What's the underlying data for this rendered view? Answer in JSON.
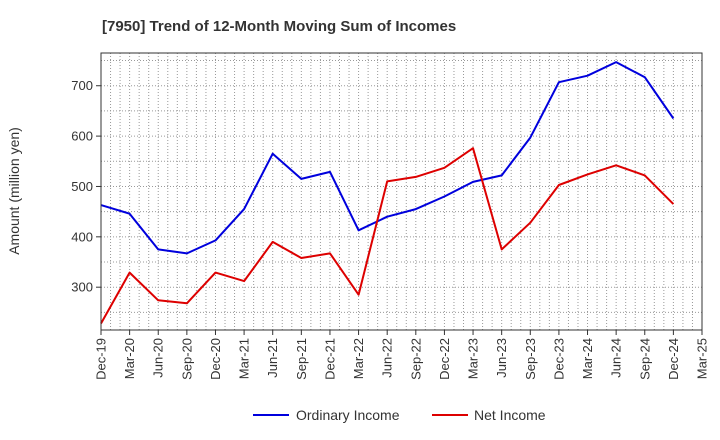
{
  "chart_data": {
    "type": "line",
    "title": "[7950]  Trend of 12-Month Moving Sum of Incomes",
    "xlabel": "",
    "ylabel": "Amount (million yen)",
    "ylim": [
      215,
      765
    ],
    "yticks": [
      300,
      400,
      500,
      600,
      700
    ],
    "grid": true,
    "legend": "bottom",
    "categories": [
      "Dec-19",
      "Mar-20",
      "Jun-20",
      "Sep-20",
      "Dec-20",
      "Mar-21",
      "Jun-21",
      "Sep-21",
      "Dec-21",
      "Mar-22",
      "Jun-22",
      "Sep-22",
      "Dec-22",
      "Mar-23",
      "Jun-23",
      "Sep-23",
      "Dec-23",
      "Mar-24",
      "Jun-24",
      "Sep-24",
      "Dec-24",
      "Mar-25"
    ],
    "series": [
      {
        "name": "Ordinary Income",
        "color": "#0000dd",
        "values": [
          463,
          446,
          375,
          367,
          393,
          455,
          565,
          515,
          529,
          413,
          440,
          455,
          480,
          509,
          522,
          597,
          707,
          720,
          747,
          717,
          635,
          null
        ]
      },
      {
        "name": "Net Income",
        "color": "#dd0000",
        "values": [
          228,
          329,
          274,
          268,
          329,
          312,
          390,
          358,
          367,
          285,
          510,
          519,
          537,
          576,
          375,
          428,
          503,
          524,
          542,
          522,
          465,
          null
        ]
      }
    ]
  }
}
